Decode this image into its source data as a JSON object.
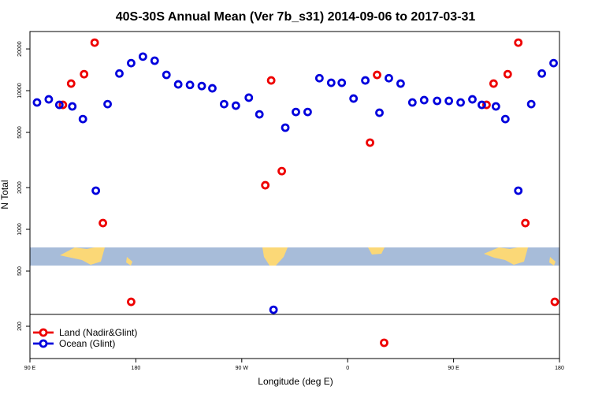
{
  "chart_data": {
    "type": "scatter",
    "title": "40S-30S Annual Mean (Ver 7b_s31)   2014-09-06 to 2017-03-31",
    "x_label": "Longitude (deg E)",
    "y_label": "N Total",
    "log_y": true,
    "legend": "bottom-left",
    "xlim": [
      90,
      540
    ],
    "ylim": [
      117,
      26700
    ],
    "xticks": [
      {
        "value": 90,
        "label": "90 E"
      },
      180,
      {
        "value": 270,
        "label": "90 W"
      },
      {
        "value": 360,
        "label": "0"
      },
      {
        "value": 450,
        "label": "90 E"
      },
      {
        "value": 540,
        "label": "180"
      }
    ],
    "yticks": [
      200,
      500,
      1000,
      2000,
      5000,
      10000,
      20000
    ],
    "series": [
      {
        "name": "Land (Nadir&Glint)",
        "color": "#ee0000",
        "x": [
          118,
          125,
          136,
          145,
          152,
          176,
          290,
          295,
          304,
          379,
          385,
          391,
          478,
          484,
          496,
          505,
          511,
          536
        ],
        "values": [
          7900,
          11250,
          13150,
          22200,
          1110,
          300,
          2080,
          11850,
          2630,
          4220,
          12990,
          152,
          7900,
          11250,
          13150,
          22200,
          1110,
          300
        ]
      },
      {
        "name": "Ocean (Glint)",
        "color": "#0000dd",
        "x": [
          96,
          106,
          115,
          126,
          135,
          146,
          156,
          166,
          176,
          186,
          196,
          206,
          216,
          226,
          236,
          245,
          255,
          265,
          276,
          285,
          297,
          307,
          316,
          326,
          336,
          346,
          355,
          365,
          375,
          387,
          395,
          405,
          415,
          425,
          436,
          446,
          456,
          466,
          474,
          486,
          494,
          505,
          516,
          525,
          535
        ],
        "values": [
          8220,
          8660,
          7900,
          7700,
          6240,
          1900,
          8000,
          13300,
          15800,
          17600,
          16450,
          13000,
          11100,
          11000,
          10800,
          10400,
          8000,
          7800,
          8900,
          6750,
          263,
          5410,
          7020,
          7020,
          12300,
          11400,
          11400,
          8770,
          11850,
          6930,
          12300,
          11250,
          8220,
          8550,
          8440,
          8440,
          8220,
          8660,
          7900,
          7700,
          6240,
          1900,
          8000,
          13300,
          15800
        ]
      }
    ]
  }
}
